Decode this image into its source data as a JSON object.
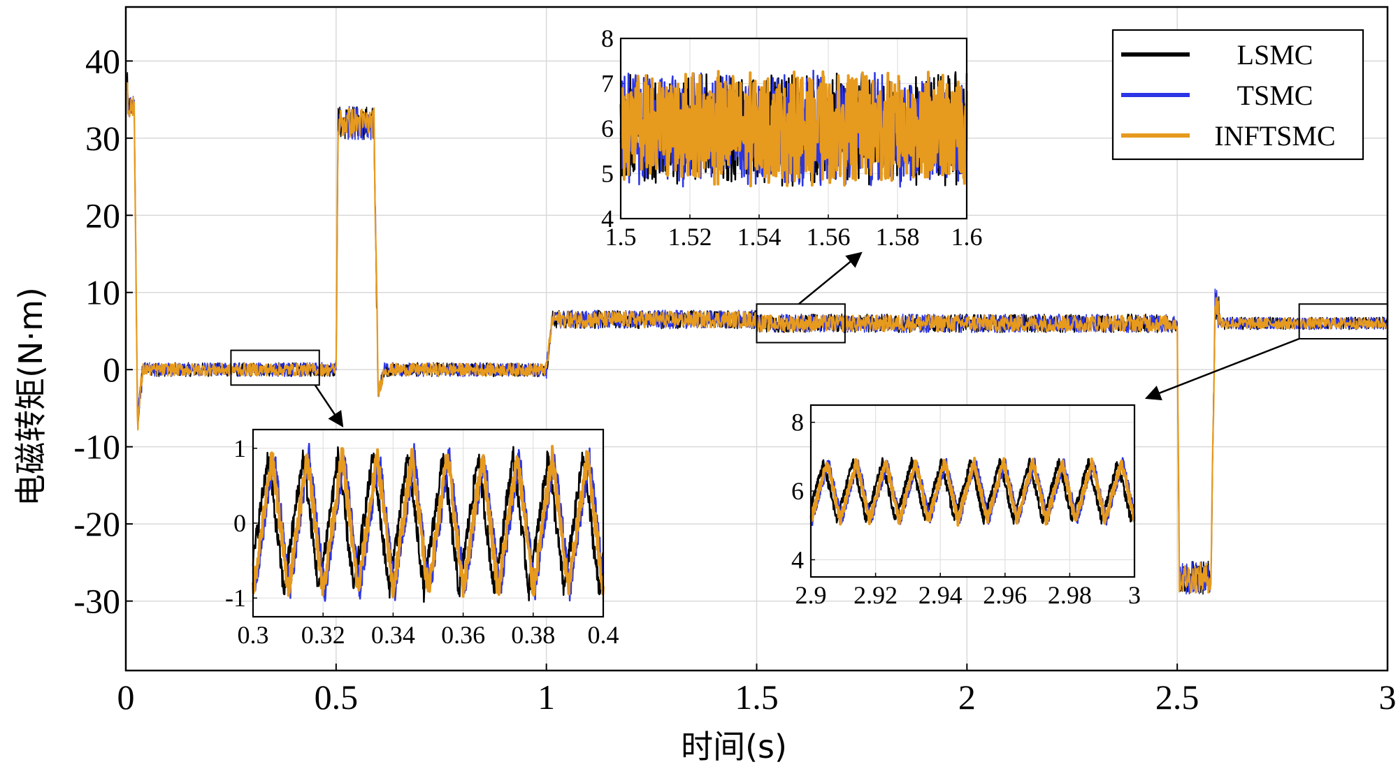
{
  "chart_data": {
    "type": "line",
    "title": "",
    "xlabel": "时间(s)",
    "ylabel": "电磁转矩(N·m)",
    "xlim": [
      0,
      3
    ],
    "ylim": [
      -39,
      47
    ],
    "xticks": [
      0,
      0.5,
      1,
      1.5,
      2,
      2.5,
      3
    ],
    "xtick_labels": [
      "0",
      "0.5",
      "1",
      "1.5",
      "2",
      "2.5",
      "3"
    ],
    "yticks": [
      40,
      30,
      20,
      10,
      0,
      -10,
      -20,
      -30
    ],
    "ytick_labels": [
      "40",
      "30",
      "20",
      "10",
      "0",
      "-10",
      "-20",
      "-30"
    ],
    "grid": true,
    "legend_position": "top-right",
    "series": [
      {
        "name": "LSMC",
        "color": "#000000"
      },
      {
        "name": "TSMC",
        "color": "#2b35e6"
      },
      {
        "name": "INFTSMC",
        "color": "#e69a1e"
      }
    ],
    "profile": {
      "description": "mean torque (N·m) vs time (s) with ripple amplitude",
      "segments": [
        {
          "t": [
            0,
            0.02
          ],
          "value": 35,
          "ripple": 2
        },
        {
          "t": [
            0.02,
            0.03
          ],
          "value": -7,
          "ripple": 0
        },
        {
          "t": [
            0.04,
            0.5
          ],
          "value": 0,
          "ripple": 1.2
        },
        {
          "t": [
            0.5,
            0.59
          ],
          "value": 32,
          "ripple": 2.5
        },
        {
          "t": [
            0.6,
            1.0
          ],
          "value": 0,
          "ripple": 1.2
        },
        {
          "t": [
            1.0,
            2.5
          ],
          "value": 6,
          "ripple": 1.5
        },
        {
          "t": [
            2.5,
            2.58
          ],
          "value": -26,
          "ripple": 2.5
        },
        {
          "t": [
            2.6,
            3.0
          ],
          "value": 6,
          "ripple": 1
        }
      ]
    },
    "insets": [
      {
        "name": "inset-03-04",
        "xlim": [
          0.3,
          0.4
        ],
        "ylim": [
          -1.25,
          1.25
        ],
        "xticks": [
          0.3,
          0.32,
          0.34,
          0.36,
          0.38,
          0.4
        ],
        "xtick_labels": [
          "0.3",
          "0.32",
          "0.34",
          "0.36",
          "0.38",
          "0.4"
        ],
        "yticks": [
          1,
          0,
          -1
        ],
        "ytick_labels": [
          "1",
          "0",
          "-1"
        ],
        "mean": 0,
        "amplitude": 0.9,
        "cycles": 10
      },
      {
        "name": "inset-15-16",
        "xlim": [
          1.5,
          1.6
        ],
        "ylim": [
          4,
          8
        ],
        "xticks": [
          1.5,
          1.52,
          1.54,
          1.56,
          1.58,
          1.6
        ],
        "xtick_labels": [
          "1.5",
          "1.52",
          "1.54",
          "1.56",
          "1.58",
          "1.6"
        ],
        "yticks": [
          8,
          7,
          6,
          5,
          4
        ],
        "ytick_labels": [
          "8",
          "7",
          "6",
          "5",
          "4"
        ],
        "mean": 6,
        "amplitude": 1.3,
        "cycles": 120
      },
      {
        "name": "inset-29-3",
        "xlim": [
          2.9,
          3.0
        ],
        "ylim": [
          3.5,
          8.5
        ],
        "xticks": [
          2.9,
          2.92,
          2.94,
          2.96,
          2.98,
          3.0
        ],
        "xtick_labels": [
          "2.9",
          "2.92",
          "2.94",
          "2.96",
          "2.98",
          "3"
        ],
        "yticks": [
          8,
          6,
          4
        ],
        "ytick_labels": [
          "8",
          "6",
          "4"
        ],
        "mean": 6,
        "amplitude": 0.85,
        "cycles": 11
      }
    ],
    "zoom_boxes": [
      {
        "x": [
          0.25,
          0.46
        ],
        "y": [
          -2,
          2.5
        ]
      },
      {
        "x": [
          1.5,
          1.71
        ],
        "y": [
          3.5,
          8.5
        ]
      },
      {
        "x": [
          2.79,
          3.0
        ],
        "y": [
          4,
          8.5
        ]
      }
    ]
  }
}
